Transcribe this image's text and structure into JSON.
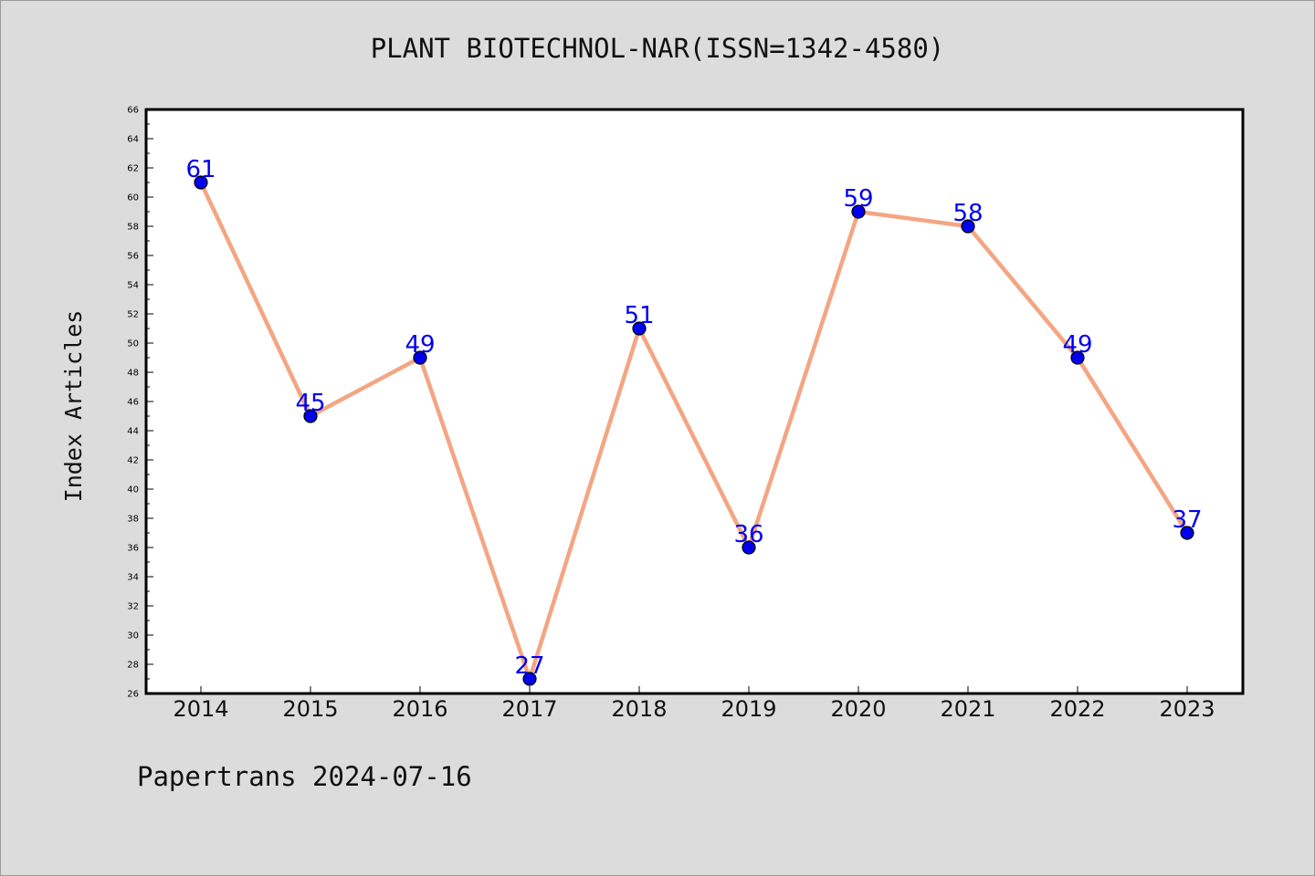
{
  "chart_data": {
    "type": "line",
    "title": "PLANT BIOTECHNOL-NAR(ISSN=1342-4580)",
    "xlabel": "",
    "ylabel": "Index Articles",
    "categories": [
      "2014",
      "2015",
      "2016",
      "2017",
      "2018",
      "2019",
      "2020",
      "2021",
      "2022",
      "2023"
    ],
    "series": [
      {
        "values": [
          61,
          45,
          49,
          27,
          51,
          36,
          59,
          58,
          49,
          37
        ]
      }
    ],
    "ylim": [
      26,
      66
    ],
    "yticks": [
      "26",
      "28",
      "30",
      "32",
      "34",
      "36",
      "38",
      "40",
      "42",
      "44",
      "46",
      "48",
      "50",
      "52",
      "54",
      "56",
      "58",
      "60",
      "62",
      "64",
      "66"
    ],
    "grid": false,
    "line_color": "#f4a582",
    "marker_color": "#0000ee",
    "label_color": "#0000ee"
  },
  "footer": {
    "text": "Papertrans 2024-07-16"
  }
}
